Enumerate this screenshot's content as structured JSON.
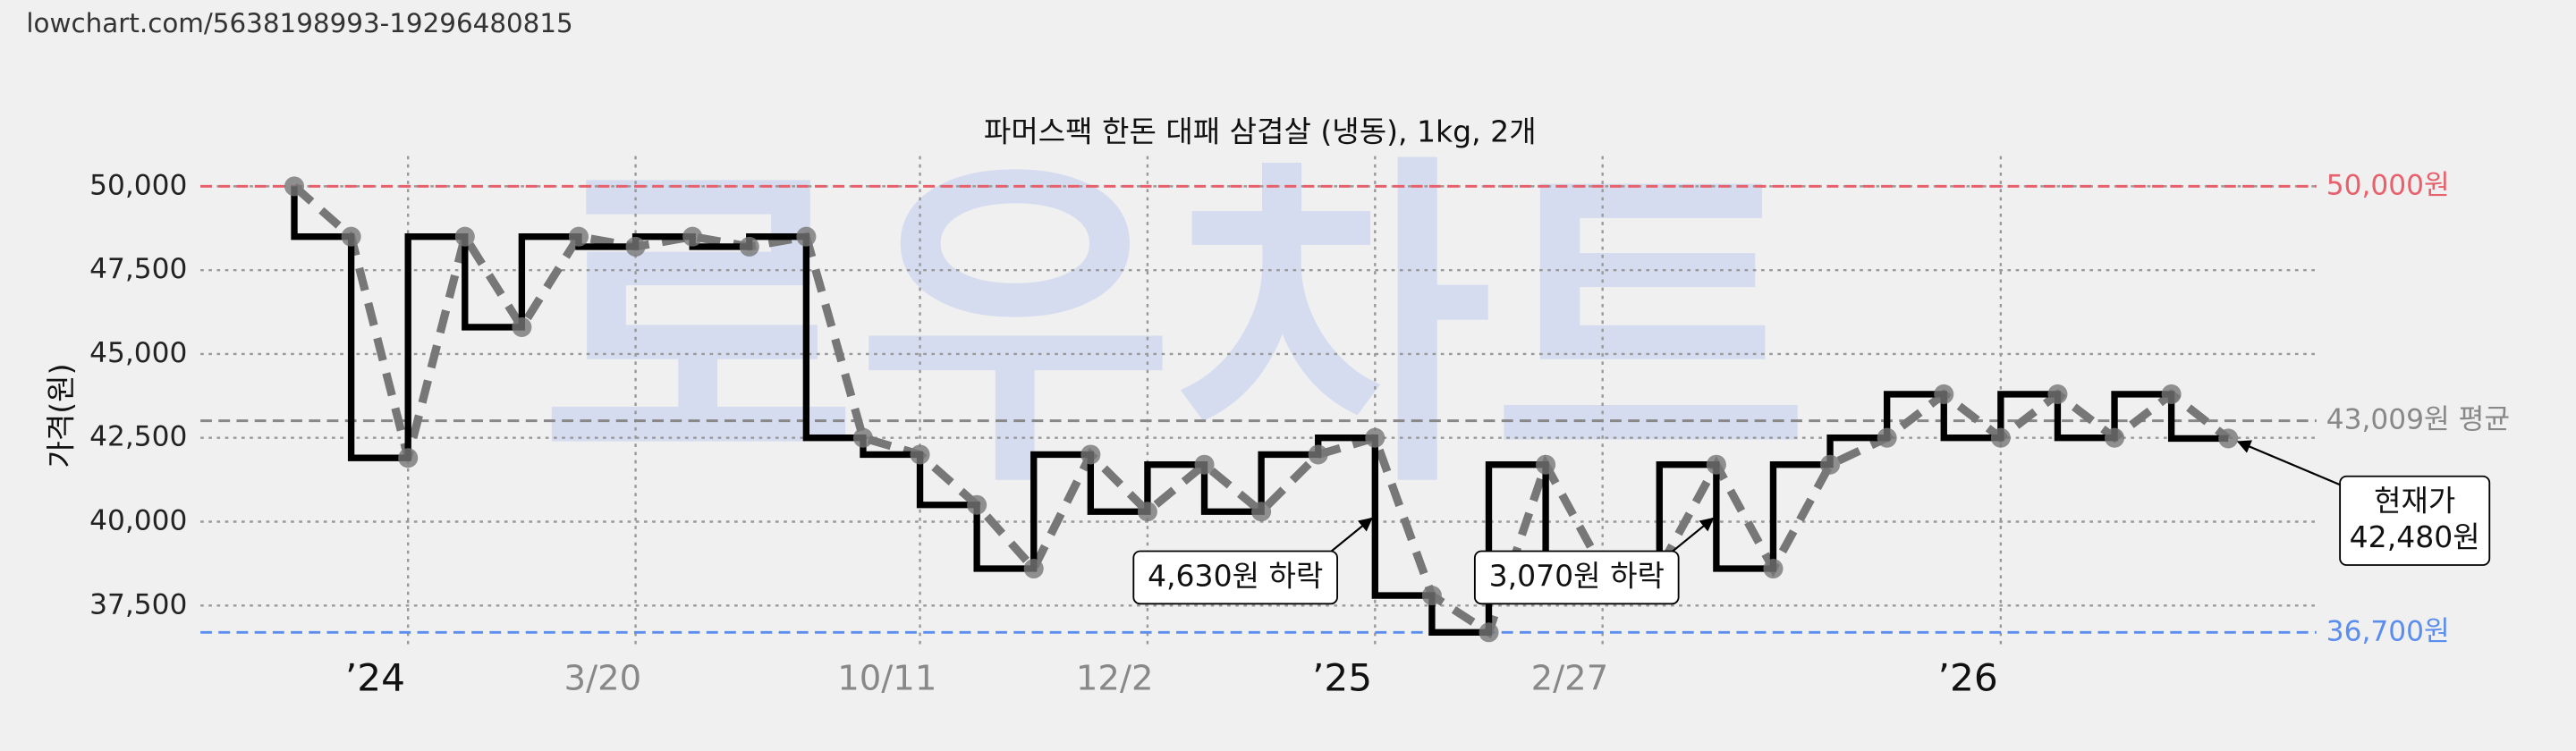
{
  "url": "lowchart.com/5638198993-19296480815",
  "chart_data": {
    "type": "step-line",
    "title": "파머스팩 한돈 대패 삼겹살 (냉동), 1kg, 2개",
    "y_label": "가격(원)",
    "watermark": "로우차트",
    "values": [
      50000,
      48500,
      41900,
      48500,
      45800,
      48500,
      48200,
      48500,
      48200,
      48500,
      42500,
      42000,
      40500,
      38600,
      42000,
      40300,
      41700,
      40300,
      42000,
      42500,
      37800,
      36700,
      41700,
      38600,
      38600,
      41700,
      38600,
      41700,
      42500,
      43800,
      42500,
      43800,
      42500,
      43800,
      42480
    ],
    "line_color": "#000000",
    "trend_color": "#777777",
    "xlim": [
      -1.65,
      35.55
    ],
    "ylim": [
      36200,
      50900
    ],
    "xticks": [
      {
        "value": 2,
        "label": "’24"
      },
      {
        "value": 6,
        "label": "3/20"
      },
      {
        "value": 11,
        "label": "10/11"
      },
      {
        "value": 15,
        "label": "12/2"
      },
      {
        "value": 19,
        "label": "’25"
      },
      {
        "value": 23,
        "label": "2/27"
      },
      {
        "value": 30,
        "label": "’26"
      }
    ],
    "yticks": [
      {
        "value": 37500,
        "label": "37,500"
      },
      {
        "value": 40000,
        "label": "40,000"
      },
      {
        "value": 42500,
        "label": "42,500"
      },
      {
        "value": 45000,
        "label": "45,000"
      },
      {
        "value": 47500,
        "label": "47,500"
      },
      {
        "value": 50000,
        "label": "50,000"
      }
    ],
    "grid": true,
    "reference_lines": [
      {
        "value": 50000,
        "label": "50,000원",
        "color": "#e8606c"
      },
      {
        "value": 43009,
        "label": "43,009원 평균",
        "color": "#888888"
      },
      {
        "value": 36700,
        "label": "36,700원",
        "color": "#5b8def"
      }
    ],
    "annotations": [
      {
        "lines": [
          "4,630원 하락"
        ],
        "x": 19,
        "y": 40100
      },
      {
        "lines": [
          "3,070원 하락"
        ],
        "x": 25,
        "y": 40100
      },
      {
        "lines": [
          "현재가",
          "42,480원"
        ],
        "x": 34,
        "y": 42480
      }
    ]
  }
}
